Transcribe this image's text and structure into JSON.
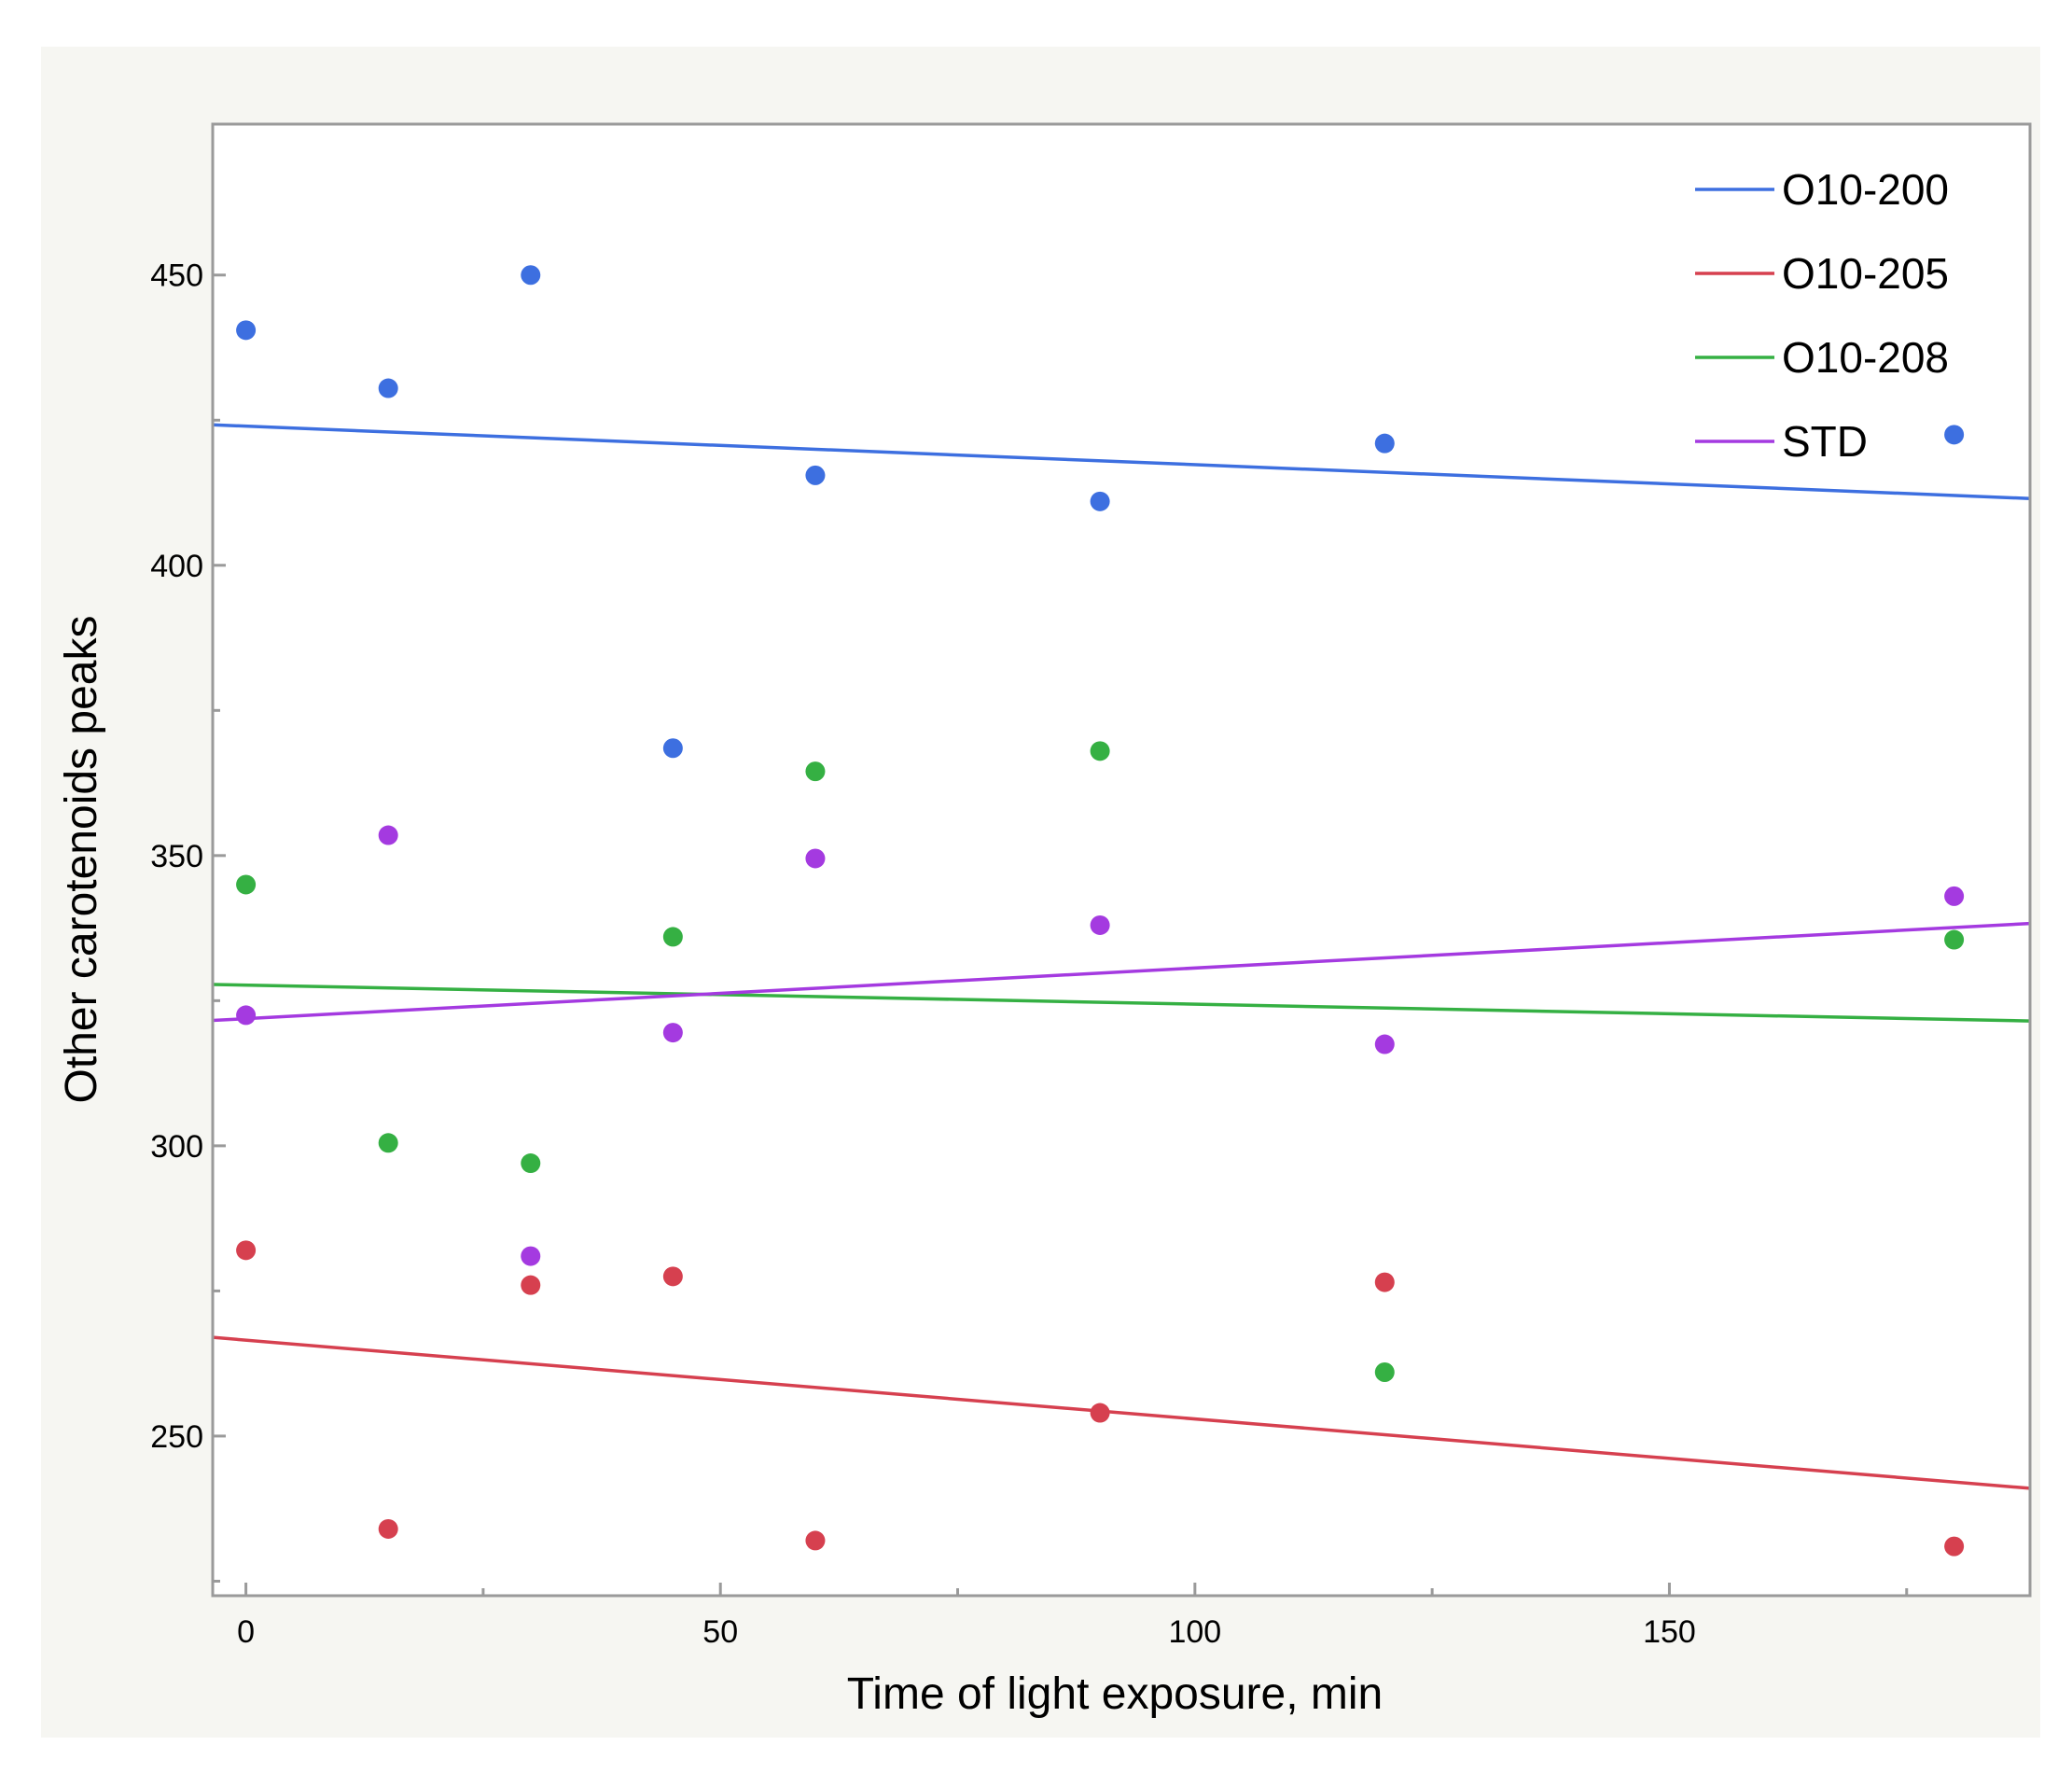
{
  "chart_data": {
    "type": "scatter",
    "title": "",
    "xlabel": "Time of light exposure, min",
    "ylabel": "Other carotenoids peaks",
    "xlim": [
      -3.5,
      188
    ],
    "ylim": [
      222.5,
      476
    ],
    "xticks": [
      0,
      50,
      100,
      150
    ],
    "xtick_labels": [
      "0",
      "50",
      "100",
      "150"
    ],
    "x_minor_ticks": [
      25,
      75,
      125,
      175
    ],
    "yticks": [
      250,
      300,
      350,
      400,
      450
    ],
    "ytick_labels": [
      "250",
      "300",
      "350",
      "400",
      "450"
    ],
    "y_minor_ticks": [
      225,
      275,
      325,
      375,
      425
    ],
    "grid": false,
    "legend_position": "top-right",
    "series": [
      {
        "name": "O10-200",
        "color": "#3d6fe0",
        "points": [
          [
            0,
            440.5
          ],
          [
            15,
            430.5
          ],
          [
            30,
            450
          ],
          [
            45,
            368.5
          ],
          [
            60,
            415.5
          ],
          [
            90,
            411
          ],
          [
            120,
            421
          ],
          [
            180,
            422.5
          ]
        ],
        "fit": [
          [
            -3.5,
            424.2
          ],
          [
            188,
            411.5
          ]
        ]
      },
      {
        "name": "O10-205",
        "color": "#d6404f",
        "points": [
          [
            0,
            282
          ],
          [
            15,
            234
          ],
          [
            30,
            276
          ],
          [
            45,
            277.5
          ],
          [
            60,
            232
          ],
          [
            90,
            254
          ],
          [
            120,
            276.5
          ],
          [
            180,
            231
          ]
        ],
        "fit": [
          [
            -3.5,
            267
          ],
          [
            188,
            241
          ]
        ]
      },
      {
        "name": "O10-208",
        "color": "#35b043",
        "points": [
          [
            0,
            345
          ],
          [
            15,
            300.5
          ],
          [
            30,
            297
          ],
          [
            45,
            336
          ],
          [
            60,
            364.5
          ],
          [
            90,
            368
          ],
          [
            120,
            261
          ],
          [
            180,
            335.5
          ]
        ],
        "fit": [
          [
            -3.5,
            327.8
          ],
          [
            188,
            321.5
          ]
        ]
      },
      {
        "name": "STD",
        "color": "#a43ae0",
        "points": [
          [
            0,
            322.5
          ],
          [
            15,
            353.5
          ],
          [
            30,
            281
          ],
          [
            45,
            319.5
          ],
          [
            60,
            349.5
          ],
          [
            90,
            338
          ],
          [
            120,
            317.5
          ],
          [
            180,
            343
          ]
        ],
        "fit": [
          [
            -3.5,
            321.6
          ],
          [
            188,
            338.3
          ]
        ]
      }
    ]
  }
}
